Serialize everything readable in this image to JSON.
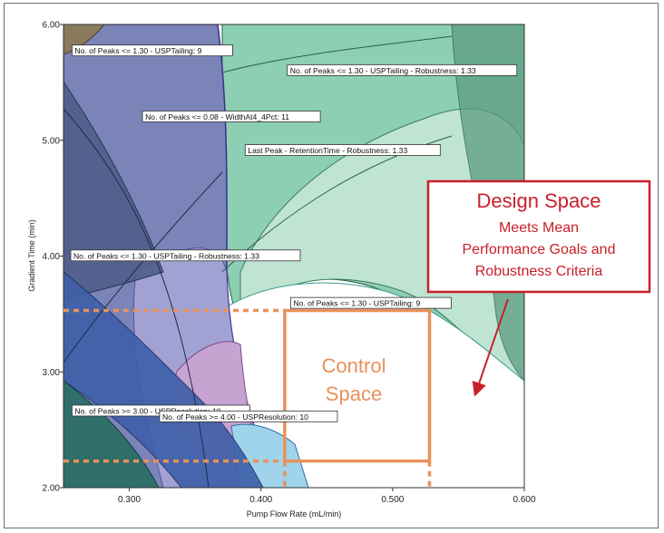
{
  "chart_data": {
    "type": "contour",
    "title": "",
    "xlabel": "Pump Flow Rate (mL/min)",
    "ylabel": "Gradient Time (min)",
    "xlim": [
      0.25,
      0.6
    ],
    "ylim": [
      2.0,
      6.0
    ],
    "x_ticks": [
      "0.300",
      "0.400",
      "0.500",
      "0.600"
    ],
    "x_tick_values": [
      0.3,
      0.4,
      0.5,
      0.6
    ],
    "y_ticks": [
      "2.00",
      "3.00",
      "4.00",
      "5.00",
      "6.00"
    ],
    "y_tick_values": [
      2.0,
      3.0,
      4.0,
      5.0,
      6.0
    ],
    "contour_labels": [
      {
        "text": "No. of Peaks <= 1.30 - USPTailing: 9",
        "x": 0.2565,
        "y": 5.76
      },
      {
        "text": "No. of Peaks <= 1.30 - USPTailing - Robustness: 1.33",
        "x": 0.42,
        "y": 5.59
      },
      {
        "text": "No. of Peaks <= 0.08 - WidthAt4_4Pct: 11",
        "x": 0.31,
        "y": 5.19
      },
      {
        "text": "Last Peak - RetentionTime - Robustness: 1.33",
        "x": 0.388,
        "y": 4.9
      },
      {
        "text": "No. of Peaks <= 1.30 - USPTailing - Robustness: 1.33",
        "x": 0.2555,
        "y": 3.99
      },
      {
        "text": "No. of Peaks <= 1.30 - USPTailing: 9",
        "x": 0.4225,
        "y": 3.58
      },
      {
        "text": "No. of Peaks >= 3.00 - USPResolution: 10",
        "x": 0.2565,
        "y": 2.65
      },
      {
        "text": "No. of Peaks >= 4.00 - USPResolution: 10",
        "x": 0.323,
        "y": 2.6
      }
    ],
    "control_space": {
      "x": [
        0.418,
        0.528
      ],
      "y": [
        2.23,
        3.53
      ]
    }
  },
  "annotation": {
    "title": "Design Space",
    "lines": [
      "Meets Mean",
      "Performance Goals and",
      "Robustness Criteria"
    ]
  },
  "control_label": [
    "Control",
    "Space"
  ],
  "colors": {
    "accent_red": "#c8202a",
    "control_orange": "#e8925a",
    "design_green": "#8ccfb3"
  }
}
